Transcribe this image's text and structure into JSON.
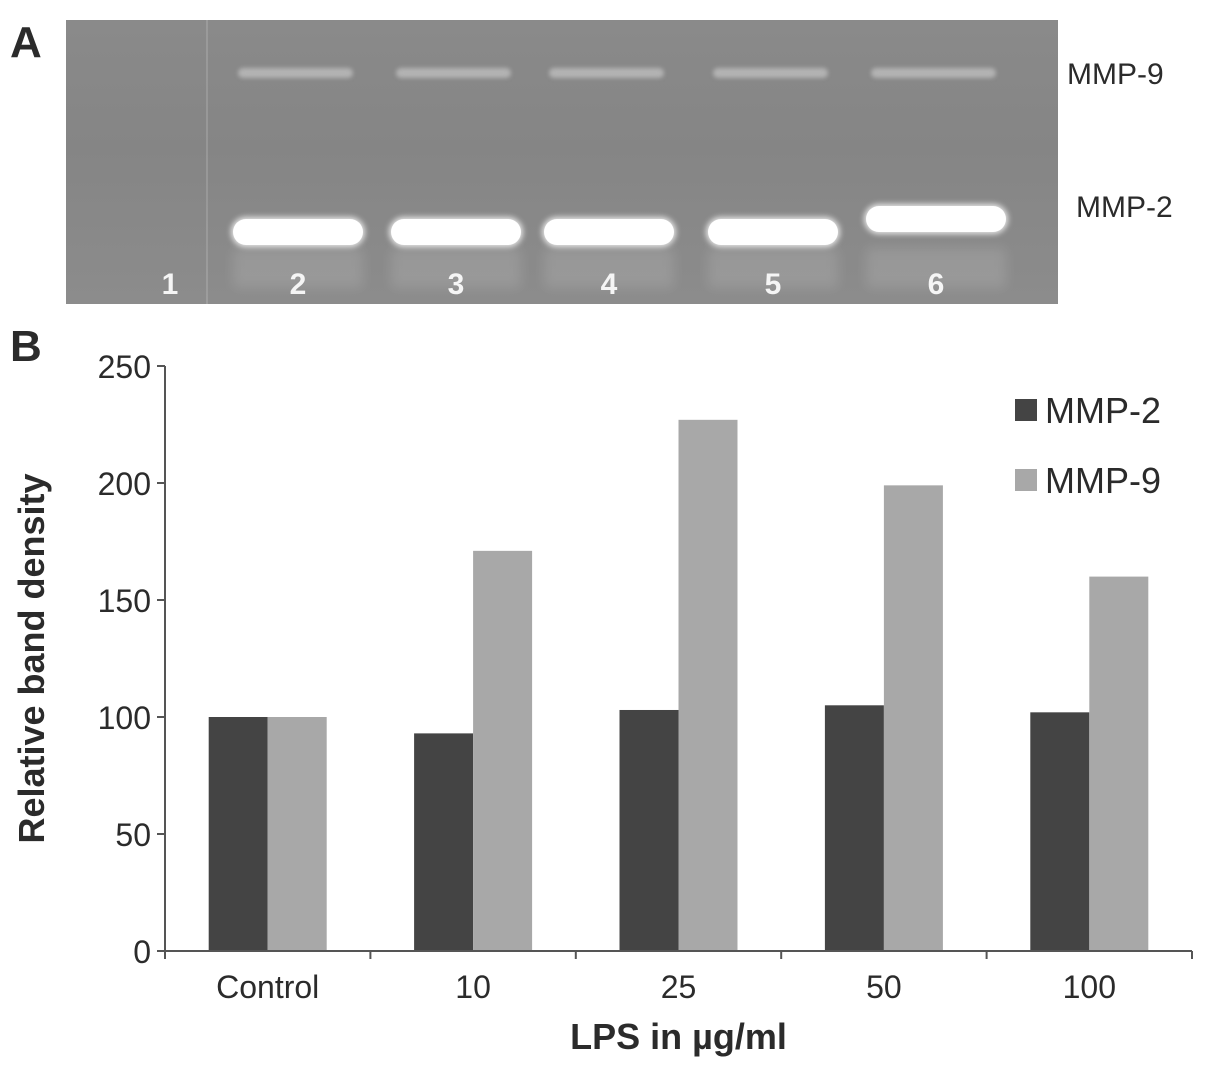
{
  "panels": {
    "a_letter": "A",
    "b_letter": "B"
  },
  "gel": {
    "lanes": [
      "1",
      "2",
      "3",
      "4",
      "5",
      "6"
    ],
    "band_labels": {
      "upper": "MMP-9",
      "lower": "MMP-2"
    }
  },
  "colors": {
    "mmp2": "#444444",
    "mmp9": "#a8a8a8",
    "axis": "#555555",
    "gel_background": "#888888"
  },
  "chart_data": {
    "type": "bar",
    "categories": [
      "Control",
      "10",
      "25",
      "50",
      "100"
    ],
    "series": [
      {
        "name": "MMP-2",
        "values": [
          100,
          93,
          103,
          105,
          102
        ]
      },
      {
        "name": "MMP-9",
        "values": [
          100,
          171,
          227,
          199,
          160
        ]
      }
    ],
    "xlabel": "LPS in µg/ml",
    "ylabel": "Relative band density",
    "ylim": [
      0,
      250
    ],
    "yticks": [
      0,
      50,
      100,
      150,
      200,
      250
    ],
    "grid": false,
    "legend": "top-right"
  }
}
